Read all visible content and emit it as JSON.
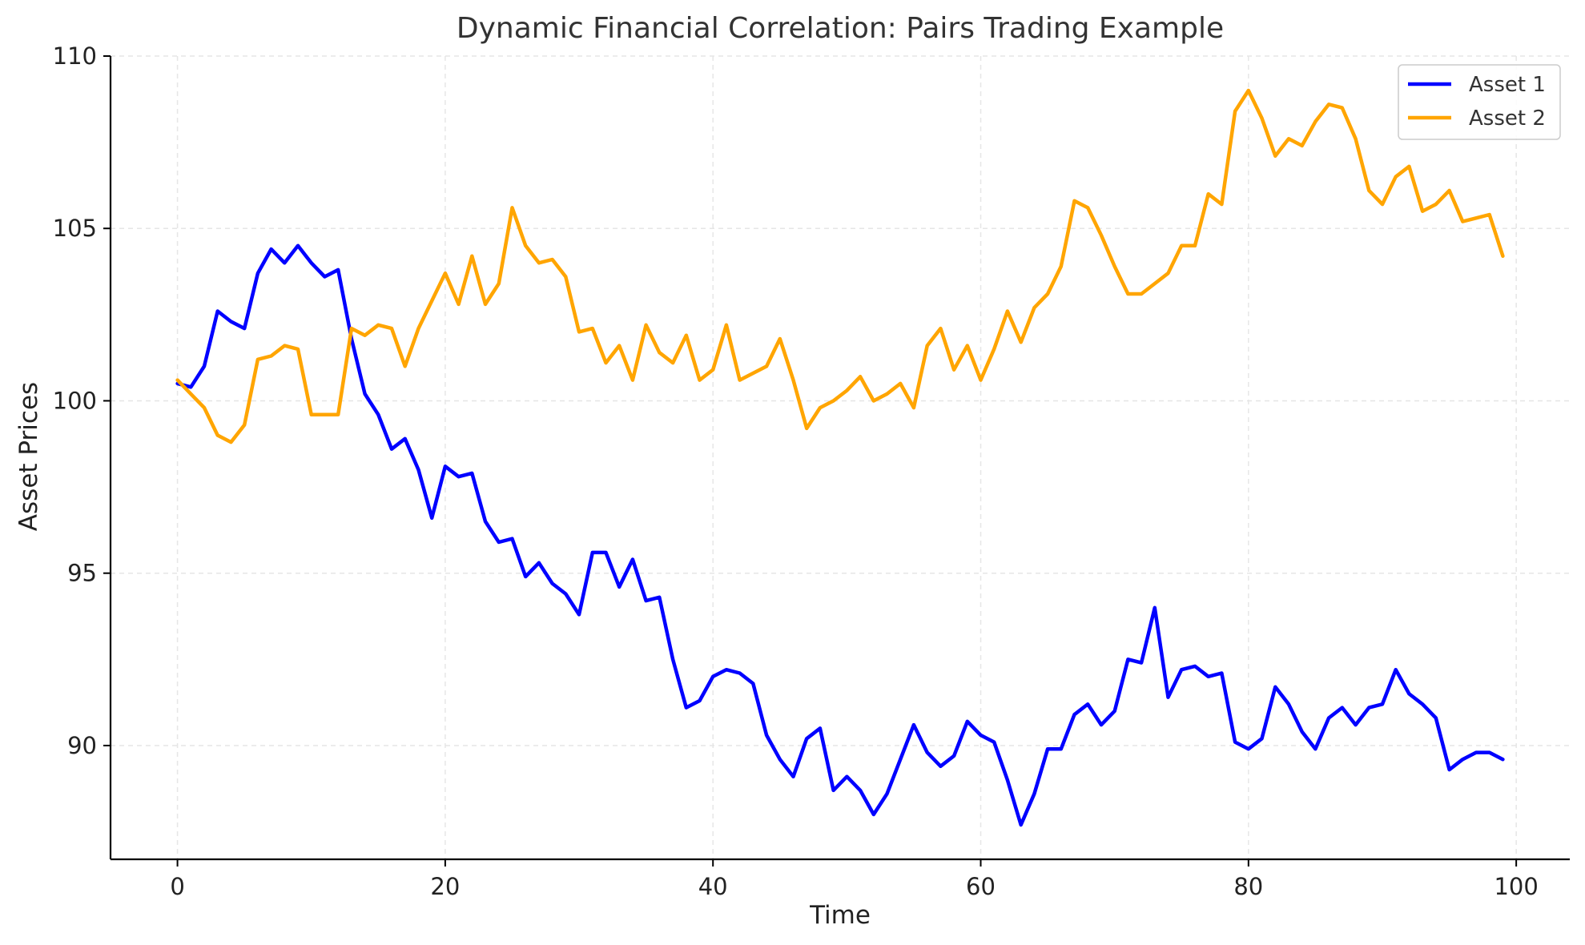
{
  "chart_data": {
    "type": "line",
    "title": "Dynamic Financial Correlation: Pairs Trading Example",
    "xlabel": "Time",
    "ylabel": "Asset Prices",
    "xlim": [
      -5,
      104
    ],
    "ylim": [
      86.7,
      110
    ],
    "xticks": [
      0,
      20,
      40,
      60,
      80,
      100
    ],
    "yticks": [
      90,
      95,
      100,
      105,
      110
    ],
    "grid": true,
    "legend_position": "top-right",
    "x": [
      0,
      1,
      2,
      3,
      4,
      5,
      6,
      7,
      8,
      9,
      10,
      11,
      12,
      13,
      14,
      15,
      16,
      17,
      18,
      19,
      20,
      21,
      22,
      23,
      24,
      25,
      26,
      27,
      28,
      29,
      30,
      31,
      32,
      33,
      34,
      35,
      36,
      37,
      38,
      39,
      40,
      41,
      42,
      43,
      44,
      45,
      46,
      47,
      48,
      49,
      50,
      51,
      52,
      53,
      54,
      55,
      56,
      57,
      58,
      59,
      60,
      61,
      62,
      63,
      64,
      65,
      66,
      67,
      68,
      69,
      70,
      71,
      72,
      73,
      74,
      75,
      76,
      77,
      78,
      79,
      80,
      81,
      82,
      83,
      84,
      85,
      86,
      87,
      88,
      89,
      90,
      91,
      92,
      93,
      94,
      95,
      96,
      97,
      98,
      99
    ],
    "series": [
      {
        "name": "Asset 1",
        "color": "#0000ff",
        "values": [
          100.5,
          100.4,
          101.0,
          102.6,
          102.3,
          102.1,
          103.7,
          104.4,
          104.0,
          104.5,
          104.0,
          103.6,
          103.8,
          101.8,
          100.2,
          99.6,
          98.6,
          98.9,
          98.0,
          96.6,
          98.1,
          97.8,
          97.9,
          96.5,
          95.9,
          96.0,
          94.9,
          95.3,
          94.7,
          94.4,
          93.8,
          95.6,
          95.6,
          94.6,
          95.4,
          94.2,
          94.3,
          92.5,
          91.1,
          91.3,
          92.0,
          92.2,
          92.1,
          91.8,
          90.3,
          89.6,
          89.1,
          90.2,
          90.5,
          88.7,
          89.1,
          88.7,
          88.0,
          88.6,
          89.6,
          90.6,
          89.8,
          89.4,
          89.7,
          90.7,
          90.3,
          90.1,
          89.0,
          87.7,
          88.6,
          89.9,
          89.9,
          90.9,
          91.2,
          90.6,
          91.0,
          92.5,
          92.4,
          94.0,
          91.4,
          92.2,
          92.3,
          92.0,
          92.1,
          90.1,
          89.9,
          90.2,
          91.7,
          91.2,
          90.4,
          89.9,
          90.8,
          91.1,
          90.6,
          91.1,
          91.2,
          92.2,
          91.5,
          91.2,
          90.8,
          89.3,
          89.6,
          89.8,
          89.8,
          89.6
        ]
      },
      {
        "name": "Asset 2",
        "color": "#ffa500",
        "values": [
          100.6,
          100.2,
          99.8,
          99.0,
          98.8,
          99.3,
          101.2,
          101.3,
          101.6,
          101.5,
          99.6,
          99.6,
          99.6,
          102.1,
          101.9,
          102.2,
          102.1,
          101.0,
          102.1,
          102.9,
          103.7,
          102.8,
          104.2,
          102.8,
          103.4,
          105.6,
          104.5,
          104.0,
          104.1,
          103.6,
          102.0,
          102.1,
          101.1,
          101.6,
          100.6,
          102.2,
          101.4,
          101.1,
          101.9,
          100.6,
          100.9,
          102.2,
          100.6,
          100.8,
          101.0,
          101.8,
          100.6,
          99.2,
          99.8,
          100.0,
          100.3,
          100.7,
          100.0,
          100.2,
          100.5,
          99.8,
          101.6,
          102.1,
          100.9,
          101.6,
          100.6,
          101.5,
          102.6,
          101.7,
          102.7,
          103.1,
          103.9,
          105.8,
          105.6,
          104.8,
          103.9,
          103.1,
          103.1,
          103.4,
          103.7,
          104.5,
          104.5,
          106.0,
          105.7,
          108.4,
          109.0,
          108.2,
          107.1,
          107.6,
          107.4,
          108.1,
          108.6,
          108.5,
          107.6,
          106.1,
          105.7,
          106.5,
          106.8,
          105.5,
          105.7,
          106.1,
          105.2,
          105.3,
          105.4,
          104.2
        ]
      }
    ]
  }
}
